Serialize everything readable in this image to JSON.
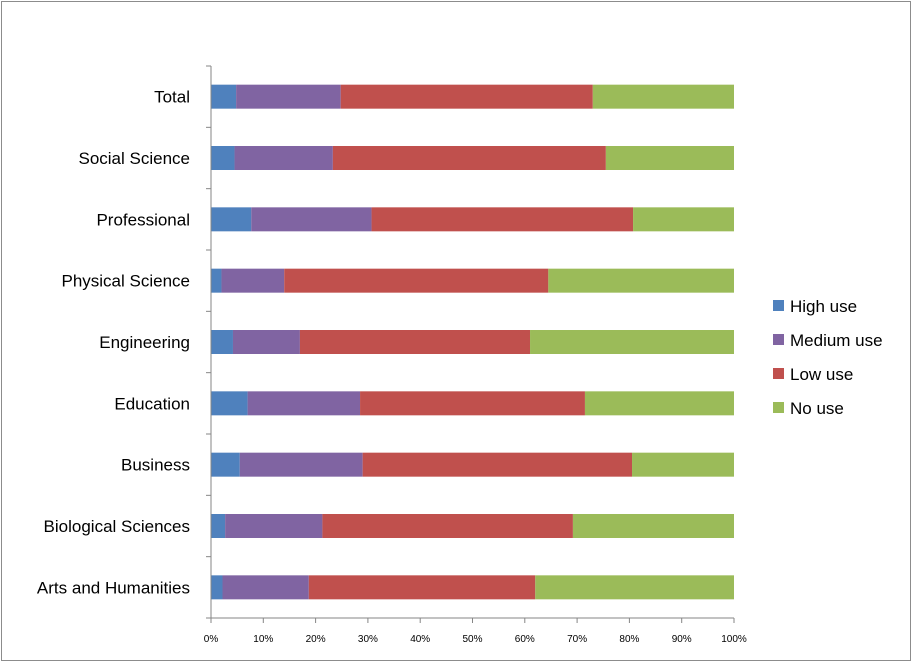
{
  "chart_data": {
    "type": "bar",
    "orientation": "horizontal",
    "stacking": "percent",
    "categories": [
      "Arts and Humanities",
      "Biological Sciences",
      "Business",
      "Education",
      "Engineering",
      "Physical Science",
      "Professional",
      "Social Science",
      "Total"
    ],
    "series": [
      {
        "name": "High use",
        "color": "#4f81bd",
        "values": [
          2.2,
          2.7,
          5.5,
          7.0,
          4.2,
          2.0,
          7.7,
          4.5,
          4.8
        ]
      },
      {
        "name": "Medium use",
        "color": "#8064a2",
        "values": [
          16.5,
          18.6,
          23.5,
          21.5,
          12.8,
          12.0,
          23.0,
          18.8,
          20.0
        ]
      },
      {
        "name": "Low use",
        "color": "#c0504d",
        "values": [
          43.3,
          47.9,
          51.5,
          43.0,
          44.0,
          50.5,
          50.0,
          52.2,
          48.2
        ]
      },
      {
        "name": "No use",
        "color": "#9bbb59",
        "values": [
          38.0,
          30.8,
          19.5,
          28.5,
          39.0,
          35.5,
          19.3,
          24.5,
          27.0
        ]
      }
    ],
    "xticks": [
      "0%",
      "10%",
      "20%",
      "30%",
      "40%",
      "50%",
      "60%",
      "70%",
      "80%",
      "90%",
      "100%"
    ],
    "xlim": [
      0,
      100
    ],
    "grid": false,
    "legend": "right"
  }
}
